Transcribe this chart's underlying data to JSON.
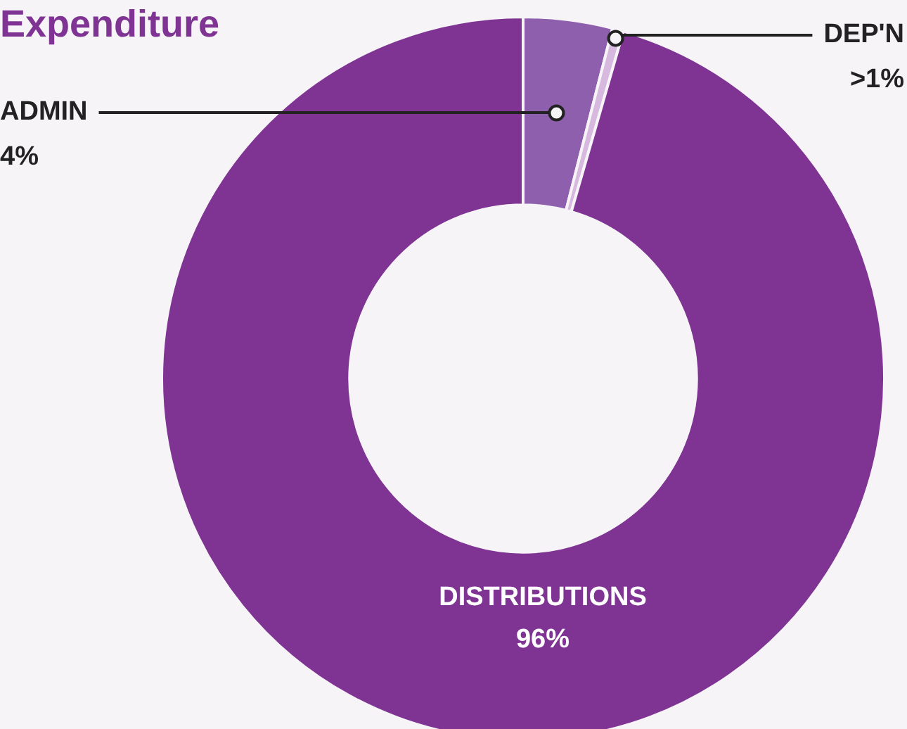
{
  "chart_data": {
    "type": "donut",
    "title": "Expenditure",
    "categories": [
      "ADMIN",
      "DEP'N",
      "DISTRIBUTIONS"
    ],
    "values": [
      4,
      0.5,
      96
    ],
    "value_labels": [
      "4%",
      ">1%",
      "96%"
    ],
    "colors": [
      "#8e5fad",
      "#d7b9df",
      "#7f3494"
    ]
  }
}
